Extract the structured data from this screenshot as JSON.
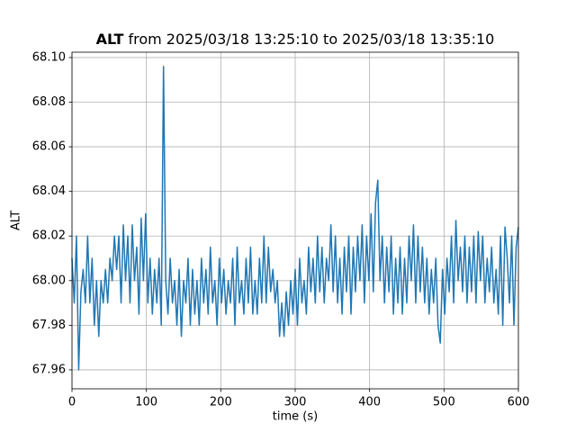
{
  "chart_data": {
    "type": "line",
    "title": {
      "variable": "ALT",
      "range": "from 2025/03/18 13:25:10 to 2025/03/18 13:35:10"
    },
    "xlabel": "time (s)",
    "ylabel": "ALT",
    "color": "#1f77b4",
    "grid": true,
    "xlim": [
      0,
      600
    ],
    "ylim": [
      67.9515,
      68.1024
    ],
    "xticks": [
      0,
      100,
      200,
      300,
      400,
      500,
      600
    ],
    "yticks": [
      67.96,
      67.98,
      {
        "value": 68,
        "label": "68.00"
      },
      68.02,
      68.04,
      68.06,
      68.08,
      {
        "value": 68.1,
        "label": "68.10"
      }
    ],
    "x": [
      0,
      3,
      6,
      9,
      12,
      15,
      18,
      21,
      24,
      27,
      30,
      33,
      36,
      39,
      42,
      45,
      48,
      51,
      54,
      57,
      60,
      63,
      66,
      69,
      72,
      75,
      78,
      81,
      84,
      87,
      90,
      93,
      96,
      99,
      102,
      105,
      108,
      111,
      114,
      117,
      120,
      123,
      126,
      129,
      132,
      135,
      138,
      141,
      144,
      147,
      150,
      153,
      156,
      159,
      162,
      165,
      168,
      171,
      174,
      177,
      180,
      183,
      186,
      189,
      192,
      195,
      198,
      201,
      204,
      207,
      210,
      213,
      216,
      219,
      222,
      225,
      228,
      231,
      234,
      237,
      240,
      243,
      246,
      249,
      252,
      255,
      258,
      261,
      264,
      267,
      270,
      273,
      276,
      279,
      282,
      285,
      288,
      291,
      294,
      297,
      300,
      303,
      306,
      309,
      312,
      315,
      318,
      321,
      324,
      327,
      330,
      333,
      336,
      339,
      342,
      345,
      348,
      351,
      354,
      357,
      360,
      363,
      366,
      369,
      372,
      375,
      378,
      381,
      384,
      387,
      390,
      393,
      396,
      399,
      402,
      405,
      408,
      411,
      414,
      417,
      420,
      423,
      426,
      429,
      432,
      435,
      438,
      441,
      444,
      447,
      450,
      453,
      456,
      459,
      462,
      465,
      468,
      471,
      474,
      477,
      480,
      483,
      486,
      489,
      492,
      495,
      498,
      501,
      504,
      507,
      510,
      513,
      516,
      519,
      522,
      525,
      528,
      531,
      534,
      537,
      540,
      543,
      546,
      549,
      552,
      555,
      558,
      561,
      564,
      567,
      570,
      573,
      576,
      579,
      582,
      585,
      588,
      591,
      594,
      597,
      600
    ],
    "values": [
      68.01,
      67.99,
      68.02,
      67.96,
      67.995,
      68.005,
      67.99,
      68.02,
      67.99,
      68.01,
      67.98,
      68.0,
      67.975,
      68.0,
      67.99,
      68.005,
      67.99,
      68.01,
      68.0,
      68.02,
      68.005,
      68.02,
      67.99,
      68.025,
      68.0,
      68.02,
      67.99,
      68.025,
      68.0,
      68.015,
      67.985,
      68.028,
      68.0,
      68.03,
      67.99,
      68.01,
      67.985,
      68.005,
      67.99,
      68.01,
      67.98,
      68.096,
      68.0,
      67.985,
      68.01,
      67.99,
      68.0,
      67.98,
      68.005,
      67.975,
      68.0,
      67.99,
      68.01,
      67.98,
      68.005,
      67.985,
      68.0,
      67.98,
      68.01,
      67.99,
      68.005,
      67.985,
      68.015,
      67.99,
      68.0,
      67.98,
      68.01,
      67.99,
      68.005,
      67.985,
      68.0,
      67.99,
      68.01,
      67.98,
      68.015,
      67.99,
      68.0,
      67.985,
      68.01,
      67.99,
      68.015,
      67.985,
      68.0,
      67.985,
      68.01,
      67.99,
      68.02,
      67.99,
      68.015,
      67.995,
      68.005,
      67.99,
      68.0,
      67.975,
      67.99,
      67.975,
      67.995,
      67.98,
      68.0,
      67.985,
      68.005,
      67.98,
      68.01,
      67.99,
      68.0,
      67.985,
      68.015,
      67.995,
      68.01,
      67.99,
      68.02,
      67.995,
      68.015,
      67.99,
      68.01,
      68.0,
      68.025,
      67.995,
      68.02,
      67.99,
      68.01,
      67.985,
      68.015,
      67.995,
      68.02,
      67.985,
      68.015,
      67.995,
      68.02,
      68.0,
      68.025,
      67.99,
      68.02,
      68.0,
      68.03,
      67.995,
      68.035,
      68.045,
      68.0,
      68.02,
      67.99,
      68.015,
      67.995,
      68.02,
      67.985,
      68.01,
      67.99,
      68.015,
      67.985,
      68.01,
      67.99,
      68.02,
      68.0,
      68.025,
      67.99,
      68.02,
      67.995,
      68.015,
      67.99,
      68.01,
      67.985,
      68.005,
      67.99,
      68.01,
      67.98,
      67.972,
      68.005,
      67.985,
      68.01,
      67.995,
      68.02,
      67.99,
      68.027,
      68.0,
      68.015,
      67.995,
      68.02,
      67.99,
      68.015,
      67.995,
      68.02,
      67.99,
      68.022,
      68.0,
      68.02,
      67.99,
      68.01,
      67.995,
      68.015,
      67.99,
      68.005,
      67.985,
      68.02,
      67.98,
      68.024,
      68.01,
      67.99,
      68.02,
      67.98,
      68.015,
      68.024
    ]
  }
}
